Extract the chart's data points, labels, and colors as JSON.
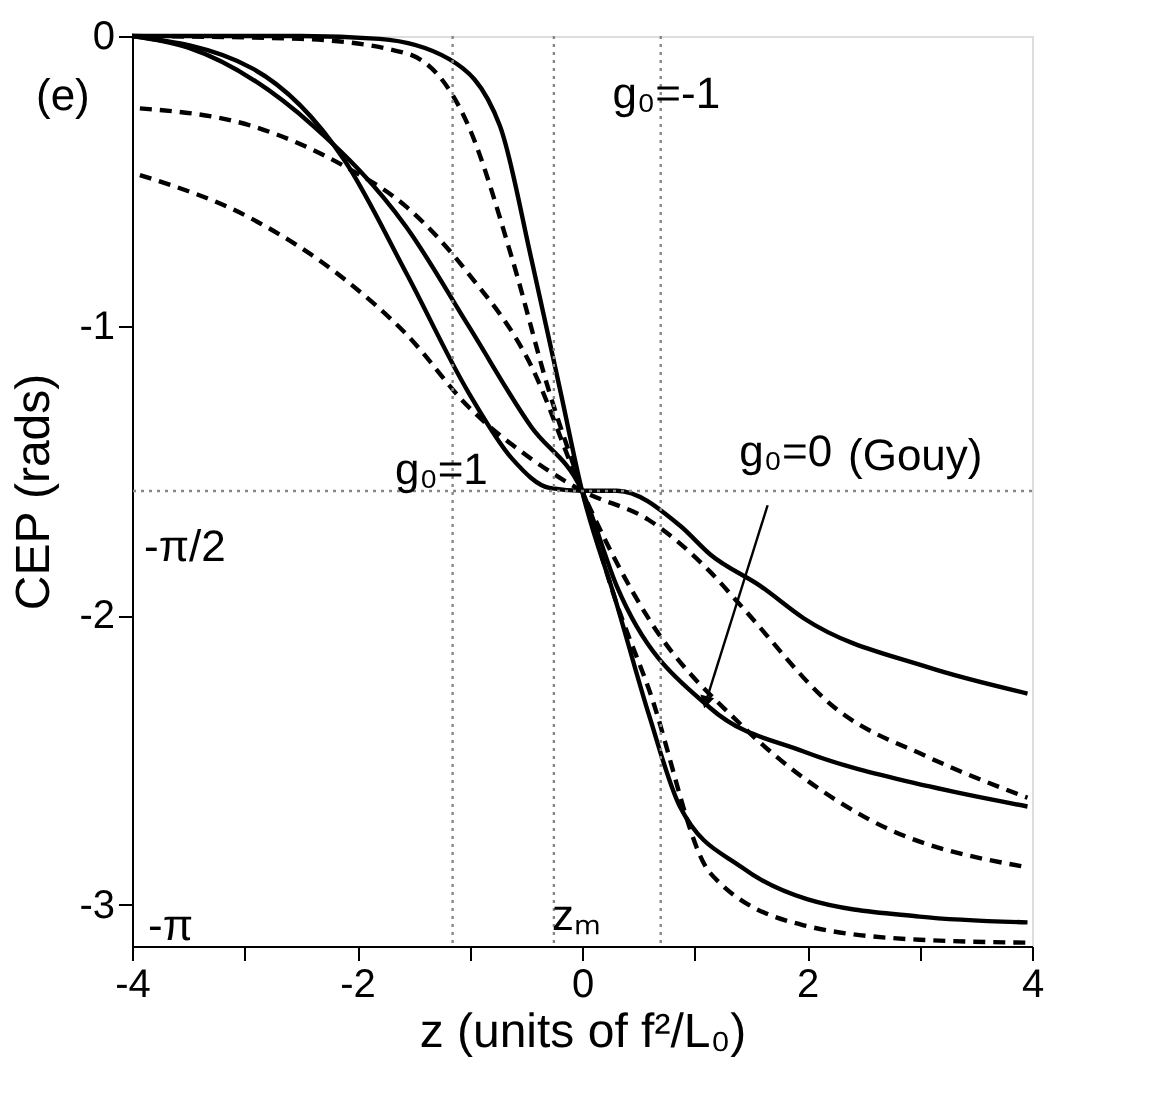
{
  "chart_data": {
    "type": "line",
    "xlabel": "z (units of f²/L₀)",
    "ylabel": "CEP (rads)",
    "xlim": [
      -4,
      4
    ],
    "ylim": [
      -3.1416,
      0
    ],
    "xticks": [
      -4,
      {
        "value": -3,
        "label": null
      },
      -2,
      {
        "value": -1,
        "label": null
      },
      0,
      {
        "value": 1,
        "label": null
      },
      2,
      {
        "value": 3,
        "label": null
      },
      4
    ],
    "yticks": [
      0,
      -1,
      -2,
      -3
    ],
    "grid": false,
    "series": [
      {
        "color": "#000000",
        "line_style": "solid",
        "x": [
          -4,
          -2.5,
          -1.8,
          -1.18,
          -0.73,
          -0.45,
          -0.19,
          0,
          0.3,
          0.6,
          0.87,
          1.42,
          2,
          3,
          3.96
        ],
        "values": [
          0,
          0,
          -0.01,
          -0.08,
          -0.31,
          -0.77,
          -1.23,
          -1.57,
          -1.95,
          -2.35,
          -2.66,
          -2.87,
          -2.98,
          -3.04,
          -3.06
        ]
      },
      {
        "color": "#000000",
        "line_style": "dashed",
        "x": [
          -4,
          -2.5,
          -1.56,
          -1.01,
          -0.62,
          -0.29,
          0,
          0.3,
          0.59,
          1.14,
          1.97,
          3,
          3.96
        ],
        "values": [
          0,
          -0.01,
          -0.06,
          -0.31,
          -0.77,
          -1.23,
          -1.57,
          -1.95,
          -2.25,
          -2.89,
          -3.07,
          -3.12,
          -3.13
        ]
      },
      {
        "color": "#000000",
        "line_style": "solid",
        "x": [
          -4,
          -3.5,
          -2.39,
          -1.56,
          -1.01,
          -0.45,
          0,
          0.31,
          1.14,
          1.97,
          3.08,
          3.96
        ],
        "values": [
          0,
          -0.04,
          -0.31,
          -0.66,
          -1.0,
          -1.35,
          -1.57,
          -1.9,
          -2.32,
          -2.47,
          -2.59,
          -2.66
        ]
      },
      {
        "color": "#000000",
        "line_style": "solid",
        "x": [
          -4,
          -2.94,
          -2.11,
          -1.56,
          -1.01,
          -0.62,
          -0.29,
          0,
          0.31,
          0.87,
          1.14,
          1.59,
          1.97,
          3.08,
          3.96
        ],
        "values": [
          0,
          -0.11,
          -0.43,
          -0.82,
          -1.23,
          -1.46,
          -1.56,
          -1.57,
          -1.57,
          -1.69,
          -1.79,
          -1.9,
          -2.01,
          -2.18,
          -2.27
        ]
      },
      {
        "color": "#000000",
        "line_style": "dashed",
        "x": [
          -3.93,
          -2.94,
          -2.11,
          -1.56,
          -1.01,
          -0.45,
          0,
          0.59,
          1.42,
          2.53,
          3.96
        ],
        "values": [
          -0.25,
          -0.31,
          -0.45,
          -0.59,
          -0.82,
          -1.14,
          -1.57,
          -2.01,
          -2.38,
          -2.7,
          -2.87
        ]
      },
      {
        "color": "#000000",
        "line_style": "dashed",
        "x": [
          -3.93,
          -2.94,
          -2.11,
          -1.56,
          -1.01,
          -0.45,
          0,
          0.59,
          1.14,
          1.42,
          2.25,
          3.08,
          3.96
        ],
        "values": [
          -0.48,
          -0.63,
          -0.84,
          -1.03,
          -1.28,
          -1.46,
          -1.57,
          -1.67,
          -1.85,
          -1.97,
          -2.32,
          -2.49,
          -2.63
        ]
      }
    ],
    "ref_lines": [
      {
        "axis": "y",
        "value": -1.5708,
        "label": "-π/2",
        "color": "#888888",
        "line_style": "dotted"
      },
      {
        "axis": "x",
        "value": -1.15,
        "color": "#888888",
        "line_style": "dotted"
      },
      {
        "axis": "x",
        "value": -0.25,
        "color": "#888888",
        "line_style": "dotted"
      },
      {
        "axis": "x",
        "value": 0.7,
        "color": "#888888",
        "line_style": "dotted"
      }
    ],
    "annotations": [
      "(e)",
      {
        "text": "g₀=-1",
        "x": 0.75,
        "y": -0.2
      },
      {
        "text": "g₀=0",
        "x": 1.1,
        "y": -2.3
      },
      "(Gouy)",
      {
        "text": "g₀=1",
        "x": -1.25,
        "y": -1.5
      },
      "-π",
      "zₘ"
    ]
  }
}
